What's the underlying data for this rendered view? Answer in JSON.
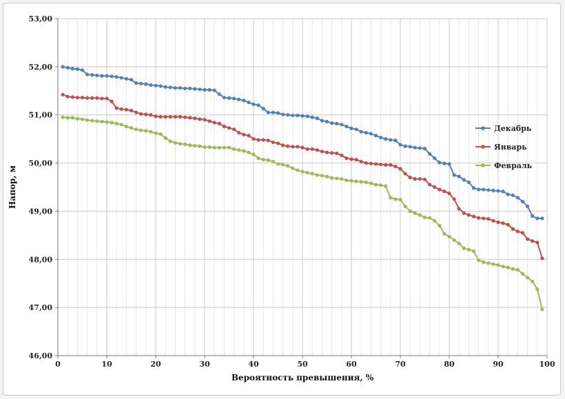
{
  "chart_data": {
    "type": "line",
    "xlabel": "Вероятность превышения, %",
    "ylabel": "Напор, м",
    "xlim": [
      0,
      100
    ],
    "ylim": [
      46,
      53
    ],
    "x_ticks": [
      0,
      10,
      20,
      30,
      40,
      50,
      60,
      70,
      80,
      90,
      100
    ],
    "x_tick_labels": [
      "0",
      "10",
      "20",
      "30",
      "40",
      "50",
      "60",
      "70",
      "80",
      "90",
      "100"
    ],
    "y_ticks": [
      46,
      47,
      48,
      49,
      50,
      51,
      52,
      53
    ],
    "y_tick_labels": [
      "46,00",
      "47,00",
      "48,00",
      "49,00",
      "50,00",
      "51,00",
      "52,00",
      "53,00"
    ],
    "grid": true,
    "legend_position": "right",
    "x": [
      1,
      2,
      3,
      4,
      5,
      6,
      7,
      8,
      9,
      10,
      11,
      12,
      13,
      14,
      15,
      16,
      17,
      18,
      19,
      20,
      21,
      22,
      23,
      24,
      25,
      26,
      27,
      28,
      29,
      30,
      31,
      32,
      33,
      34,
      35,
      36,
      37,
      38,
      39,
      40,
      41,
      42,
      43,
      44,
      45,
      46,
      47,
      48,
      49,
      50,
      51,
      52,
      53,
      54,
      55,
      56,
      57,
      58,
      59,
      60,
      61,
      62,
      63,
      64,
      65,
      66,
      67,
      68,
      69,
      70,
      71,
      72,
      73,
      74,
      75,
      76,
      77,
      78,
      79,
      80,
      81,
      82,
      83,
      84,
      85,
      86,
      87,
      88,
      89,
      90,
      91,
      92,
      93,
      94,
      95,
      96,
      97,
      98,
      99
    ],
    "series": [
      {
        "name": "Декабрь",
        "color": "#4f81bd",
        "values": [
          52.0,
          51.98,
          51.96,
          51.95,
          51.93,
          51.84,
          51.83,
          51.82,
          51.81,
          51.81,
          51.8,
          51.79,
          51.77,
          51.75,
          51.73,
          51.66,
          51.65,
          51.64,
          51.62,
          51.61,
          51.6,
          51.58,
          51.57,
          51.56,
          51.56,
          51.55,
          51.55,
          51.54,
          51.53,
          51.52,
          51.52,
          51.51,
          51.43,
          51.36,
          51.35,
          51.34,
          51.32,
          51.3,
          51.26,
          51.22,
          51.2,
          51.13,
          51.05,
          51.05,
          51.04,
          51.01,
          51.0,
          50.99,
          50.99,
          50.98,
          50.97,
          50.95,
          50.93,
          50.88,
          50.86,
          50.83,
          50.82,
          50.8,
          50.76,
          50.72,
          50.7,
          50.65,
          50.63,
          50.61,
          50.57,
          50.53,
          50.5,
          50.48,
          50.47,
          50.38,
          50.35,
          50.34,
          50.32,
          50.31,
          50.3,
          50.19,
          50.1,
          50.01,
          49.99,
          49.98,
          49.75,
          49.72,
          49.65,
          49.6,
          49.48,
          49.45,
          49.45,
          49.44,
          49.43,
          49.42,
          49.41,
          49.35,
          49.33,
          49.28,
          49.2,
          49.1,
          48.9,
          48.85,
          48.85
        ]
      },
      {
        "name": "Январь",
        "color": "#c0504d",
        "values": [
          51.42,
          51.38,
          51.37,
          51.36,
          51.36,
          51.35,
          51.35,
          51.35,
          51.34,
          51.34,
          51.28,
          51.14,
          51.12,
          51.11,
          51.09,
          51.05,
          51.02,
          51.01,
          51.0,
          50.97,
          50.96,
          50.96,
          50.96,
          50.96,
          50.96,
          50.95,
          50.94,
          50.93,
          50.91,
          50.9,
          50.87,
          50.84,
          50.82,
          50.76,
          50.73,
          50.7,
          50.63,
          50.59,
          50.57,
          50.5,
          50.48,
          50.48,
          50.47,
          50.43,
          50.41,
          50.37,
          50.35,
          50.34,
          50.34,
          50.32,
          50.29,
          50.29,
          50.27,
          50.24,
          50.22,
          50.21,
          50.2,
          50.16,
          50.1,
          50.08,
          50.07,
          50.03,
          50.0,
          49.99,
          49.98,
          49.97,
          49.96,
          49.96,
          49.93,
          49.88,
          49.78,
          49.7,
          49.67,
          49.67,
          49.66,
          49.55,
          49.5,
          49.45,
          49.41,
          49.37,
          49.25,
          49.05,
          48.96,
          48.92,
          48.89,
          48.86,
          48.85,
          48.84,
          48.8,
          48.77,
          48.75,
          48.72,
          48.63,
          48.58,
          48.55,
          48.42,
          48.38,
          48.35,
          48.02
        ]
      },
      {
        "name": "Февраль",
        "color": "#9bbb59",
        "values": [
          50.95,
          50.94,
          50.94,
          50.92,
          50.91,
          50.89,
          50.88,
          50.87,
          50.86,
          50.85,
          50.84,
          50.82,
          50.8,
          50.76,
          50.73,
          50.7,
          50.68,
          50.67,
          50.65,
          50.62,
          50.6,
          50.52,
          50.45,
          50.42,
          50.4,
          50.39,
          50.37,
          50.36,
          50.35,
          50.33,
          50.33,
          50.32,
          50.32,
          50.32,
          50.32,
          50.29,
          50.27,
          50.25,
          50.22,
          50.18,
          50.1,
          50.07,
          50.06,
          50.03,
          49.98,
          49.97,
          49.94,
          49.89,
          49.85,
          49.82,
          49.8,
          49.78,
          49.75,
          49.74,
          49.72,
          49.69,
          49.68,
          49.67,
          49.64,
          49.63,
          49.62,
          49.61,
          49.6,
          49.58,
          49.55,
          49.54,
          49.52,
          49.28,
          49.25,
          49.24,
          49.1,
          49.0,
          48.96,
          48.92,
          48.87,
          48.86,
          48.8,
          48.7,
          48.53,
          48.47,
          48.4,
          48.33,
          48.23,
          48.2,
          48.17,
          47.98,
          47.94,
          47.92,
          47.9,
          47.88,
          47.85,
          47.83,
          47.8,
          47.78,
          47.7,
          47.62,
          47.54,
          47.38,
          46.96
        ]
      }
    ]
  }
}
